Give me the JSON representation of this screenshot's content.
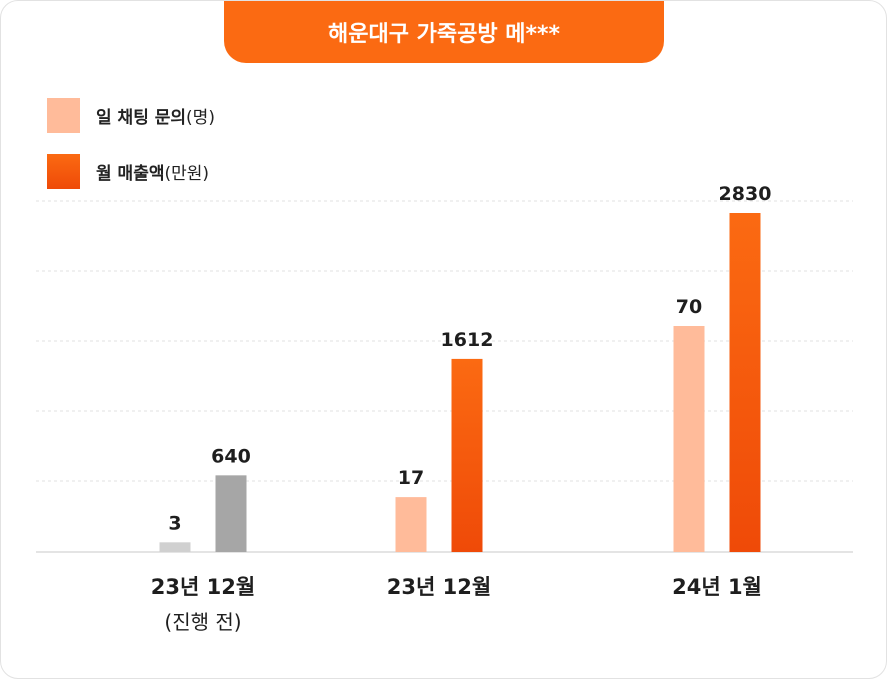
{
  "title": "해운대구 가죽공방 메***",
  "legend": [
    {
      "label": "일 채팅 문의",
      "unit": "(명)",
      "color": "#ffbb9a"
    },
    {
      "label": "월 매출액",
      "unit": "(만원)",
      "color": "#f7550e"
    }
  ],
  "chart_data": {
    "type": "bar",
    "categories": [
      "23년 12월",
      "23년 12월",
      "24년 1월"
    ],
    "category_sublabels": [
      "(진행 전)",
      "",
      ""
    ],
    "series": [
      {
        "name": "일 채팅 문의(명)",
        "values": [
          3,
          17,
          70
        ]
      },
      {
        "name": "월 매출액(만원)",
        "values": [
          640,
          1612,
          2830
        ]
      }
    ],
    "grid": true,
    "legend_position": "top-left",
    "colors": {
      "before_chat": "#d0d0d0",
      "before_sales": "#a6a6a6",
      "chat": "#ffbb9a",
      "sales_top": "#fb6a12",
      "sales_bottom": "#ef4a08"
    }
  }
}
